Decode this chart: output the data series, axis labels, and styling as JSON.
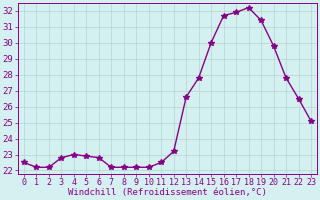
{
  "x": [
    0,
    1,
    2,
    3,
    4,
    5,
    6,
    7,
    8,
    9,
    10,
    11,
    12,
    13,
    14,
    15,
    16,
    17,
    18,
    19,
    20,
    21,
    22,
    23
  ],
  "y": [
    22.5,
    22.2,
    22.2,
    22.8,
    23.0,
    22.9,
    22.8,
    22.2,
    22.2,
    22.2,
    22.2,
    22.5,
    23.2,
    26.6,
    27.8,
    30.0,
    31.7,
    31.9,
    32.2,
    31.4,
    29.8,
    27.8,
    26.5,
    25.1
  ],
  "line_color": "#880088",
  "marker": "*",
  "markersize": 4,
  "linewidth": 1.0,
  "bg_color": "#d5f0f0",
  "grid_color": "#b0d8cc",
  "xlabel": "Windchill (Refroidissement éolien,°C)",
  "xlabel_color": "#880088",
  "xlabel_fontsize": 6.5,
  "ylabel_fontsize": 6.5,
  "tick_fontsize": 6.0,
  "ylim": [
    21.8,
    32.5
  ],
  "yticks": [
    22,
    23,
    24,
    25,
    26,
    27,
    28,
    29,
    30,
    31,
    32
  ],
  "xticks": [
    0,
    1,
    2,
    3,
    4,
    5,
    6,
    7,
    8,
    9,
    10,
    11,
    12,
    13,
    14,
    15,
    16,
    17,
    18,
    19,
    20,
    21,
    22,
    23
  ],
  "xlim": [
    -0.5,
    23.5
  ]
}
